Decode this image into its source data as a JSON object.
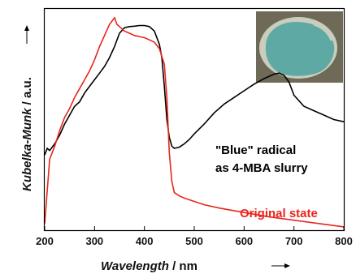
{
  "chart_data": {
    "type": "line",
    "xlabel": {
      "italic": "Wavelength",
      "unit": " / nm"
    },
    "ylabel": {
      "italic": "Kubelka-Munk",
      "unit": " / a.u."
    },
    "xlim": [
      200,
      800
    ],
    "xticks": [
      "200",
      "300",
      "400",
      "500",
      "600",
      "700",
      "800"
    ],
    "yticks_shown": false,
    "series": [
      {
        "name": "\"Blue\" radical as 4-MBA slurry",
        "label_lines": [
          "\"Blue\" radical",
          "as 4-MBA slurry"
        ],
        "color": "#000000",
        "x": [
          200,
          205,
          210,
          220,
          230,
          240,
          250,
          260,
          270,
          280,
          290,
          300,
          310,
          320,
          330,
          340,
          350,
          360,
          370,
          380,
          390,
          400,
          410,
          420,
          430,
          435,
          440,
          445,
          450,
          455,
          460,
          470,
          480,
          490,
          500,
          520,
          540,
          560,
          580,
          600,
          620,
          640,
          660,
          670,
          680,
          690,
          700,
          720,
          740,
          760,
          780,
          800
        ],
        "y": [
          0.34,
          0.37,
          0.36,
          0.39,
          0.43,
          0.48,
          0.52,
          0.56,
          0.58,
          0.62,
          0.65,
          0.68,
          0.71,
          0.74,
          0.78,
          0.83,
          0.89,
          0.915,
          0.92,
          0.922,
          0.925,
          0.925,
          0.92,
          0.9,
          0.84,
          0.78,
          0.65,
          0.5,
          0.42,
          0.38,
          0.37,
          0.375,
          0.39,
          0.41,
          0.435,
          0.48,
          0.53,
          0.57,
          0.6,
          0.63,
          0.66,
          0.685,
          0.705,
          0.71,
          0.7,
          0.67,
          0.61,
          0.56,
          0.54,
          0.52,
          0.5,
          0.49
        ]
      },
      {
        "name": "Original state",
        "label_lines": [
          "Original state"
        ],
        "color": "#e8261c",
        "x": [
          200,
          210,
          220,
          230,
          240,
          250,
          260,
          270,
          280,
          290,
          300,
          310,
          320,
          330,
          340,
          345,
          350,
          360,
          370,
          380,
          390,
          400,
          410,
          420,
          430,
          440,
          445,
          450,
          455,
          460,
          470,
          480,
          500,
          520,
          550,
          600,
          650,
          700,
          750,
          800
        ],
        "y": [
          0.03,
          0.32,
          0.38,
          0.45,
          0.51,
          0.55,
          0.6,
          0.64,
          0.68,
          0.72,
          0.77,
          0.83,
          0.88,
          0.93,
          0.96,
          0.93,
          0.92,
          0.9,
          0.89,
          0.88,
          0.875,
          0.87,
          0.86,
          0.85,
          0.82,
          0.75,
          0.6,
          0.35,
          0.22,
          0.17,
          0.155,
          0.145,
          0.13,
          0.115,
          0.1,
          0.08,
          0.06,
          0.045,
          0.03,
          0.015
        ]
      }
    ],
    "legend": "none",
    "grid": false,
    "inset": {
      "description": "photo-inset",
      "colors": {
        "background": "#6f6a58",
        "sample": "#5fa9a4",
        "ring": "#c9cdbd"
      }
    }
  }
}
